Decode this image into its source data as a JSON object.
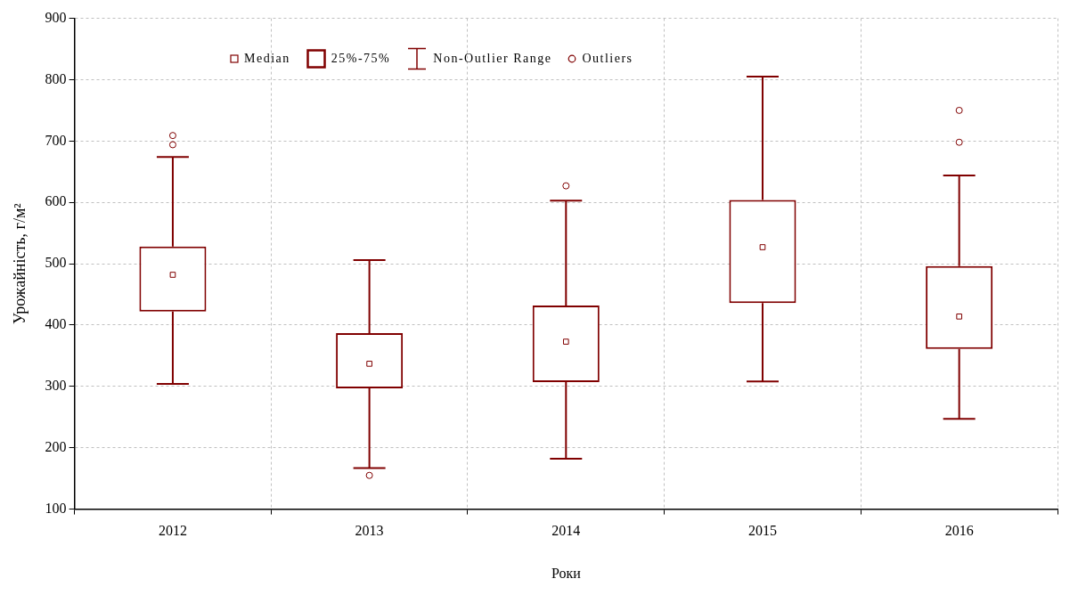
{
  "chart_data": {
    "type": "box",
    "xlabel": "Роки",
    "ylabel": "Урожайність, г/м²",
    "categories": [
      "2012",
      "2013",
      "2014",
      "2015",
      "2016"
    ],
    "series": [
      {
        "color": "#800000",
        "boxes": [
          {
            "low": 304,
            "q1": 422,
            "median": 482,
            "q3": 528,
            "high": 674,
            "outliers": [
              709,
              694
            ]
          },
          {
            "low": 167,
            "q1": 297,
            "median": 337,
            "q3": 387,
            "high": 506,
            "outliers": [
              155
            ]
          },
          {
            "low": 182,
            "q1": 307,
            "median": 373,
            "q3": 432,
            "high": 603,
            "outliers": [
              627
            ]
          },
          {
            "low": 308,
            "q1": 436,
            "median": 527,
            "q3": 604,
            "high": 805
          },
          {
            "low": 247,
            "q1": 361,
            "median": 414,
            "q3": 496,
            "high": 644,
            "outliers": [
              750,
              698
            ]
          }
        ]
      }
    ],
    "annotations": [
      "Median",
      "25%-75%",
      "Non-Outlier Range",
      "Outliers"
    ],
    "ylim": [
      100,
      900
    ],
    "yticks": [
      100,
      200,
      300,
      400,
      500,
      600,
      700,
      800,
      900
    ],
    "grid": true
  }
}
